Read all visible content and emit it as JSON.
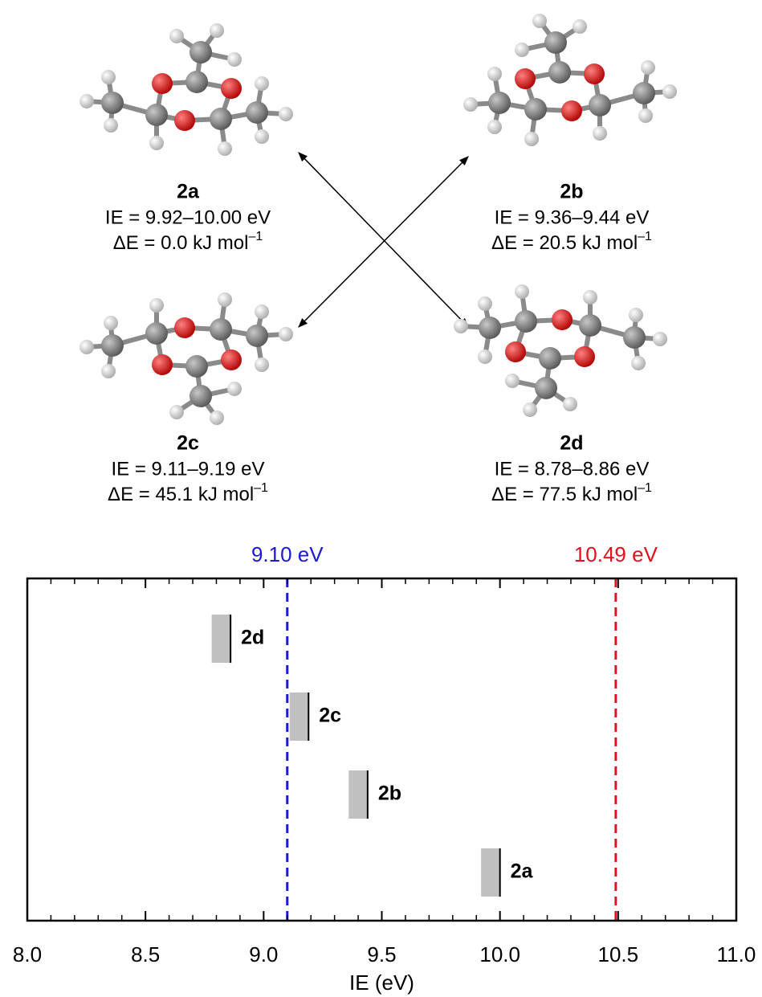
{
  "molecules": [
    {
      "name": "2a",
      "ie": "IE = 9.92–10.00 eV",
      "energy": "ΔE = 0.0 kJ mol",
      "energy_exp": "–1"
    },
    {
      "name": "2b",
      "ie": "IE = 9.36–9.44 eV",
      "energy": "ΔE = 20.5 kJ mol",
      "energy_exp": "–1"
    },
    {
      "name": "2c",
      "ie": "IE = 9.11–9.19 eV",
      "energy": "ΔE = 45.1 kJ mol",
      "energy_exp": "–1"
    },
    {
      "name": "2d",
      "ie": "IE = 8.78–8.86 eV",
      "energy": "ΔE = 77.5 kJ mol",
      "energy_exp": "–1"
    }
  ],
  "chart_data": {
    "type": "range-bar",
    "xlabel": "IE (eV)",
    "xlim": [
      8.0,
      11.0
    ],
    "xticks": [
      {
        "value": 8,
        "label": "8.0"
      },
      8.5,
      {
        "value": 9,
        "label": "9.0"
      },
      9.5,
      {
        "value": 10,
        "label": "10.0"
      },
      10.5,
      {
        "value": 11,
        "label": "11.0"
      }
    ],
    "xminorticks": [
      8.1,
      8.2,
      8.3,
      8.4,
      8.6,
      8.7,
      8.8,
      8.9,
      9.1,
      9.2,
      9.3,
      9.4,
      9.6,
      9.7,
      9.8,
      9.9,
      10.1,
      10.2,
      10.3,
      10.4,
      10.6,
      10.7,
      10.8,
      10.9
    ],
    "color": "#c0c0c0",
    "series": [
      {
        "name": "2d",
        "values": [
          8.78,
          8.86
        ]
      },
      {
        "name": "2c",
        "values": [
          9.11,
          9.19
        ]
      },
      {
        "name": "2b",
        "values": [
          9.36,
          9.44
        ]
      },
      {
        "name": "2a",
        "values": [
          9.92,
          10.0
        ]
      }
    ],
    "reference_lines": [
      {
        "value": 9.1,
        "label": "9.10 eV",
        "color": "#1a1ad6"
      },
      {
        "value": 10.49,
        "label": "10.49 eV",
        "color": "#e0101e"
      }
    ]
  }
}
